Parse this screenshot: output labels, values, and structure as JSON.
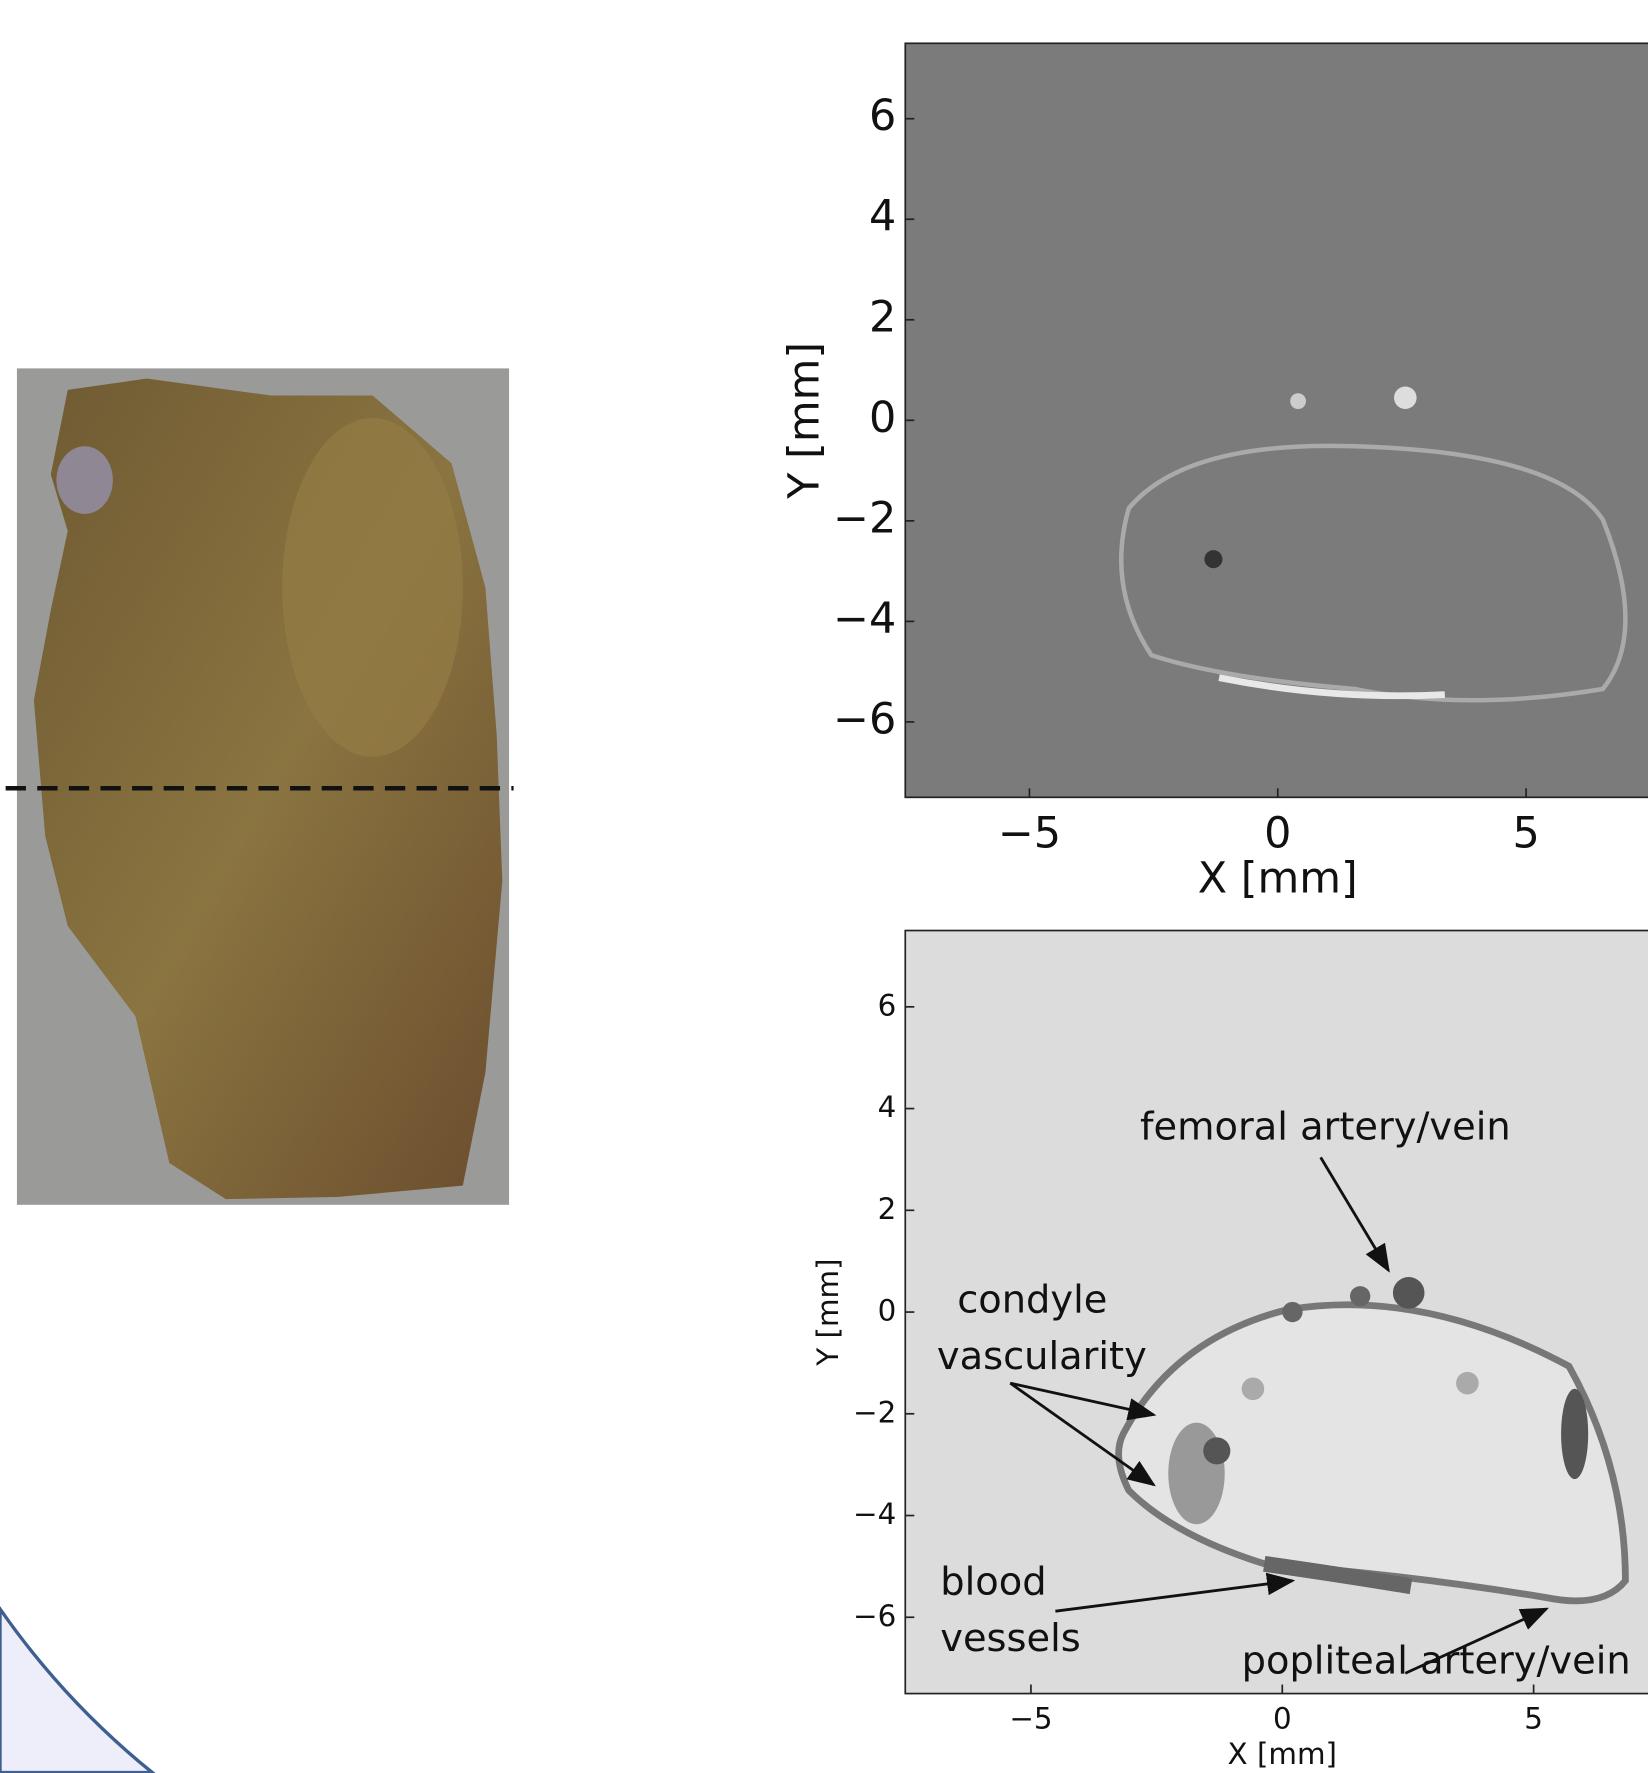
{
  "chart_data": [
    {
      "type": "image",
      "xlabel": "X [mm]",
      "ylabel": "Y [mm]",
      "xlim": [
        -7.5,
        7.5
      ],
      "ylim": [
        -7.5,
        7.5
      ],
      "xticks": [
        {
          "value": -5,
          "label": "−5"
        },
        0,
        5
      ],
      "yticks": [
        {
          "value": -6,
          "label": "−6"
        },
        {
          "value": -4,
          "label": "−4"
        },
        {
          "value": -2,
          "label": "−2"
        },
        0,
        2,
        4,
        6
      ]
    },
    {
      "type": "image",
      "xlabel": "X [mm]",
      "ylabel": "Y [mm]",
      "xlim": [
        -7.5,
        7.5
      ],
      "ylim": [
        -7.5,
        7.5
      ],
      "xticks": [
        {
          "value": -5,
          "label": "−5"
        },
        0,
        5
      ],
      "yticks": [
        {
          "value": -6,
          "label": "−6"
        },
        {
          "value": -4,
          "label": "−4"
        },
        {
          "value": -2,
          "label": "−2"
        },
        0,
        2,
        4,
        6
      ],
      "annotations": [
        {
          "lines": [
            "femoral artery/vein"
          ]
        },
        {
          "lines": [
            "condyle",
            "vascularity"
          ]
        },
        {
          "lines": [
            "blood",
            "vessels"
          ]
        },
        {
          "lines": [
            "popliteal artery/vein"
          ]
        }
      ]
    }
  ]
}
